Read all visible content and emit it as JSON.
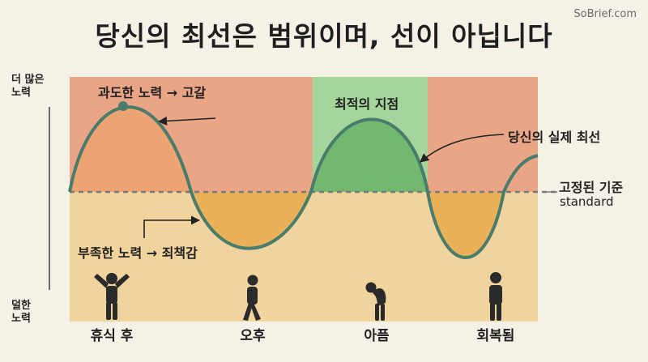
{
  "title": "당신의 최선은 범위이며, 선이 아닙니다",
  "brand": "SoBrief.com",
  "y_axis": {
    "top": "더 많은 노력",
    "bottom": "덜한 노력"
  },
  "annotations": {
    "overdrive": "과도한 노력 → 고갈",
    "underdrive": "부족한 노력 → 죄책감",
    "optimal": "최적의 지점",
    "actual_best": "당신의 실제 최선",
    "fixed": "고정된 기준",
    "standard": "standard"
  },
  "phases": [
    "휴식 후",
    "오후",
    "아픔",
    "회복됨"
  ],
  "figures": [
    "arms-raised-person-icon",
    "walking-person-icon",
    "hunched-sick-person-icon",
    "standing-person-icon"
  ],
  "colors": {
    "over_zone": "#e9a585",
    "under_zone": "#f0d197",
    "optimal_zone": "#9ccf93",
    "curve": "#4a7c6c",
    "over_fill": "#eaa172",
    "under_fill": "#eab45a",
    "optimal_fill": "#70b56f"
  }
}
